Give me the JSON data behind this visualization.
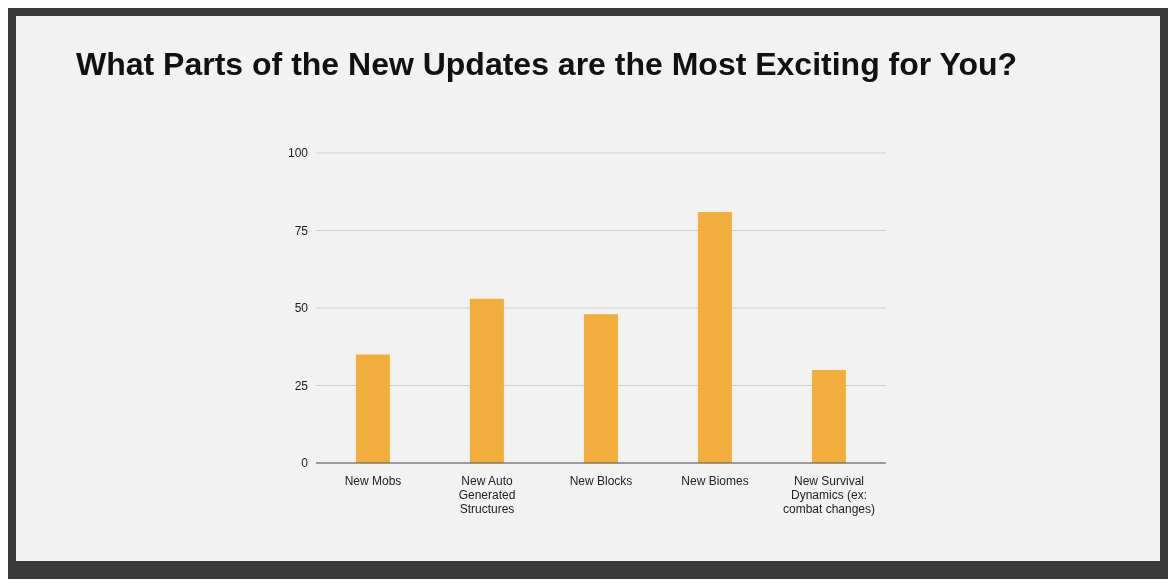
{
  "chart_data": {
    "type": "bar",
    "title": "What Parts of the New Updates are the Most Exciting for You?",
    "categories": [
      "New Mobs",
      "New Auto Generated Structures",
      "New Blocks",
      "New Biomes",
      "New Survival Dynamics (ex: combat changes)"
    ],
    "values": [
      35,
      53,
      48,
      81,
      30
    ],
    "color": "#f2ae3c",
    "ylim": [
      0,
      100
    ],
    "yticks": [
      0,
      25,
      50,
      75,
      100
    ],
    "grid": "y"
  }
}
